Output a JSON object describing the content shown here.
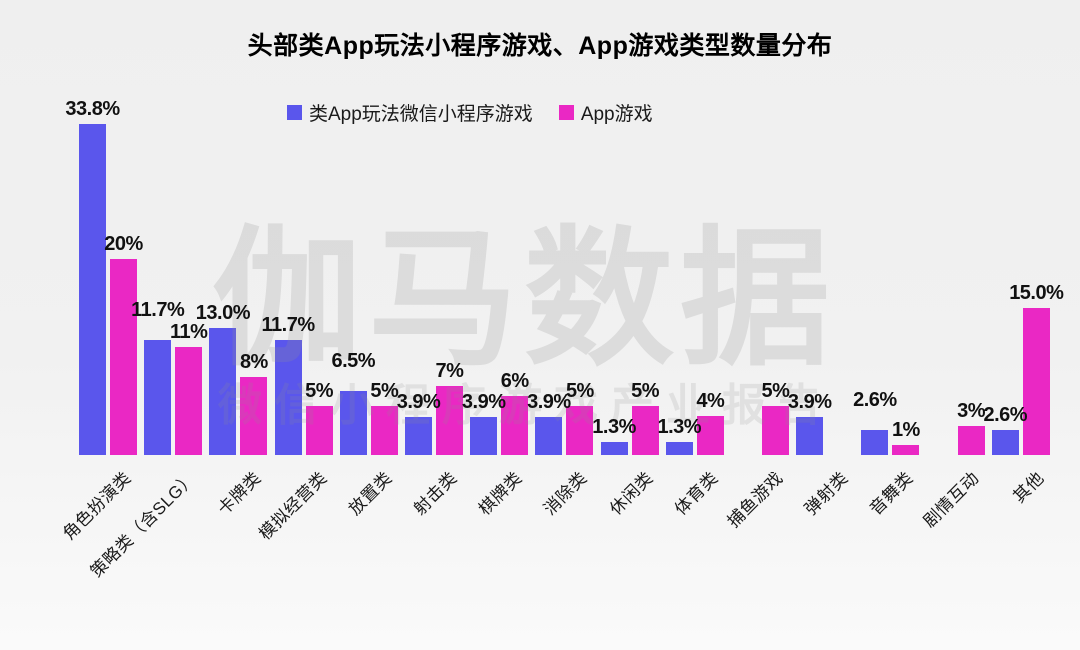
{
  "title": "头部类App玩法小程序游戏、App游戏类型数量分布",
  "legend": {
    "items": [
      {
        "label": "类App玩法微信小程序游戏",
        "color": "#5a56ec"
      },
      {
        "label": "App游戏",
        "color": "#ea28c4"
      }
    ]
  },
  "watermark": {
    "line1": "伽马数据",
    "line2": "微信小程序游戏产业报告"
  },
  "chart_data": {
    "type": "bar",
    "title": "头部类App玩法小程序游戏、App游戏类型数量分布",
    "categories": [
      "角色扮演类",
      "策略类（含SLG）",
      "卡牌类",
      "模拟经营类",
      "放置类",
      "射击类",
      "棋牌类",
      "消除类",
      "休闲类",
      "体育类",
      "捕鱼游戏",
      "弹射类",
      "音舞类",
      "剧情互动",
      "其他"
    ],
    "series": [
      {
        "name": "类App玩法微信小程序游戏",
        "color": "#5a56ec",
        "values": [
          33.8,
          11.7,
          13.0,
          11.7,
          6.5,
          3.9,
          3.9,
          3.9,
          1.3,
          1.3,
          null,
          3.9,
          2.6,
          null,
          2.6
        ],
        "labels": [
          "33.8%",
          "11.7%",
          "13.0%",
          "11.7%",
          "6.5%",
          "3.9%",
          "3.9%",
          "3.9%",
          "1.3%",
          "1.3%",
          null,
          "3.9%",
          "2.6%",
          null,
          "2.6%"
        ]
      },
      {
        "name": "App游戏",
        "color": "#ea28c4",
        "values": [
          20,
          11,
          8,
          5,
          5,
          7,
          6,
          5,
          5,
          4,
          5,
          null,
          1,
          3,
          15.0
        ],
        "labels": [
          "20%",
          "11%",
          "8%",
          "5%",
          "5%",
          "7%",
          "6%",
          "5%",
          "5%",
          "4%",
          "5%",
          null,
          "1%",
          "3%",
          "15.0%"
        ]
      }
    ],
    "ylabel": "",
    "xlabel": "",
    "ylim": [
      0,
      35
    ],
    "grid": false,
    "axis_lines": "none",
    "value_labels_shown": true,
    "legend_position": "top-center"
  }
}
